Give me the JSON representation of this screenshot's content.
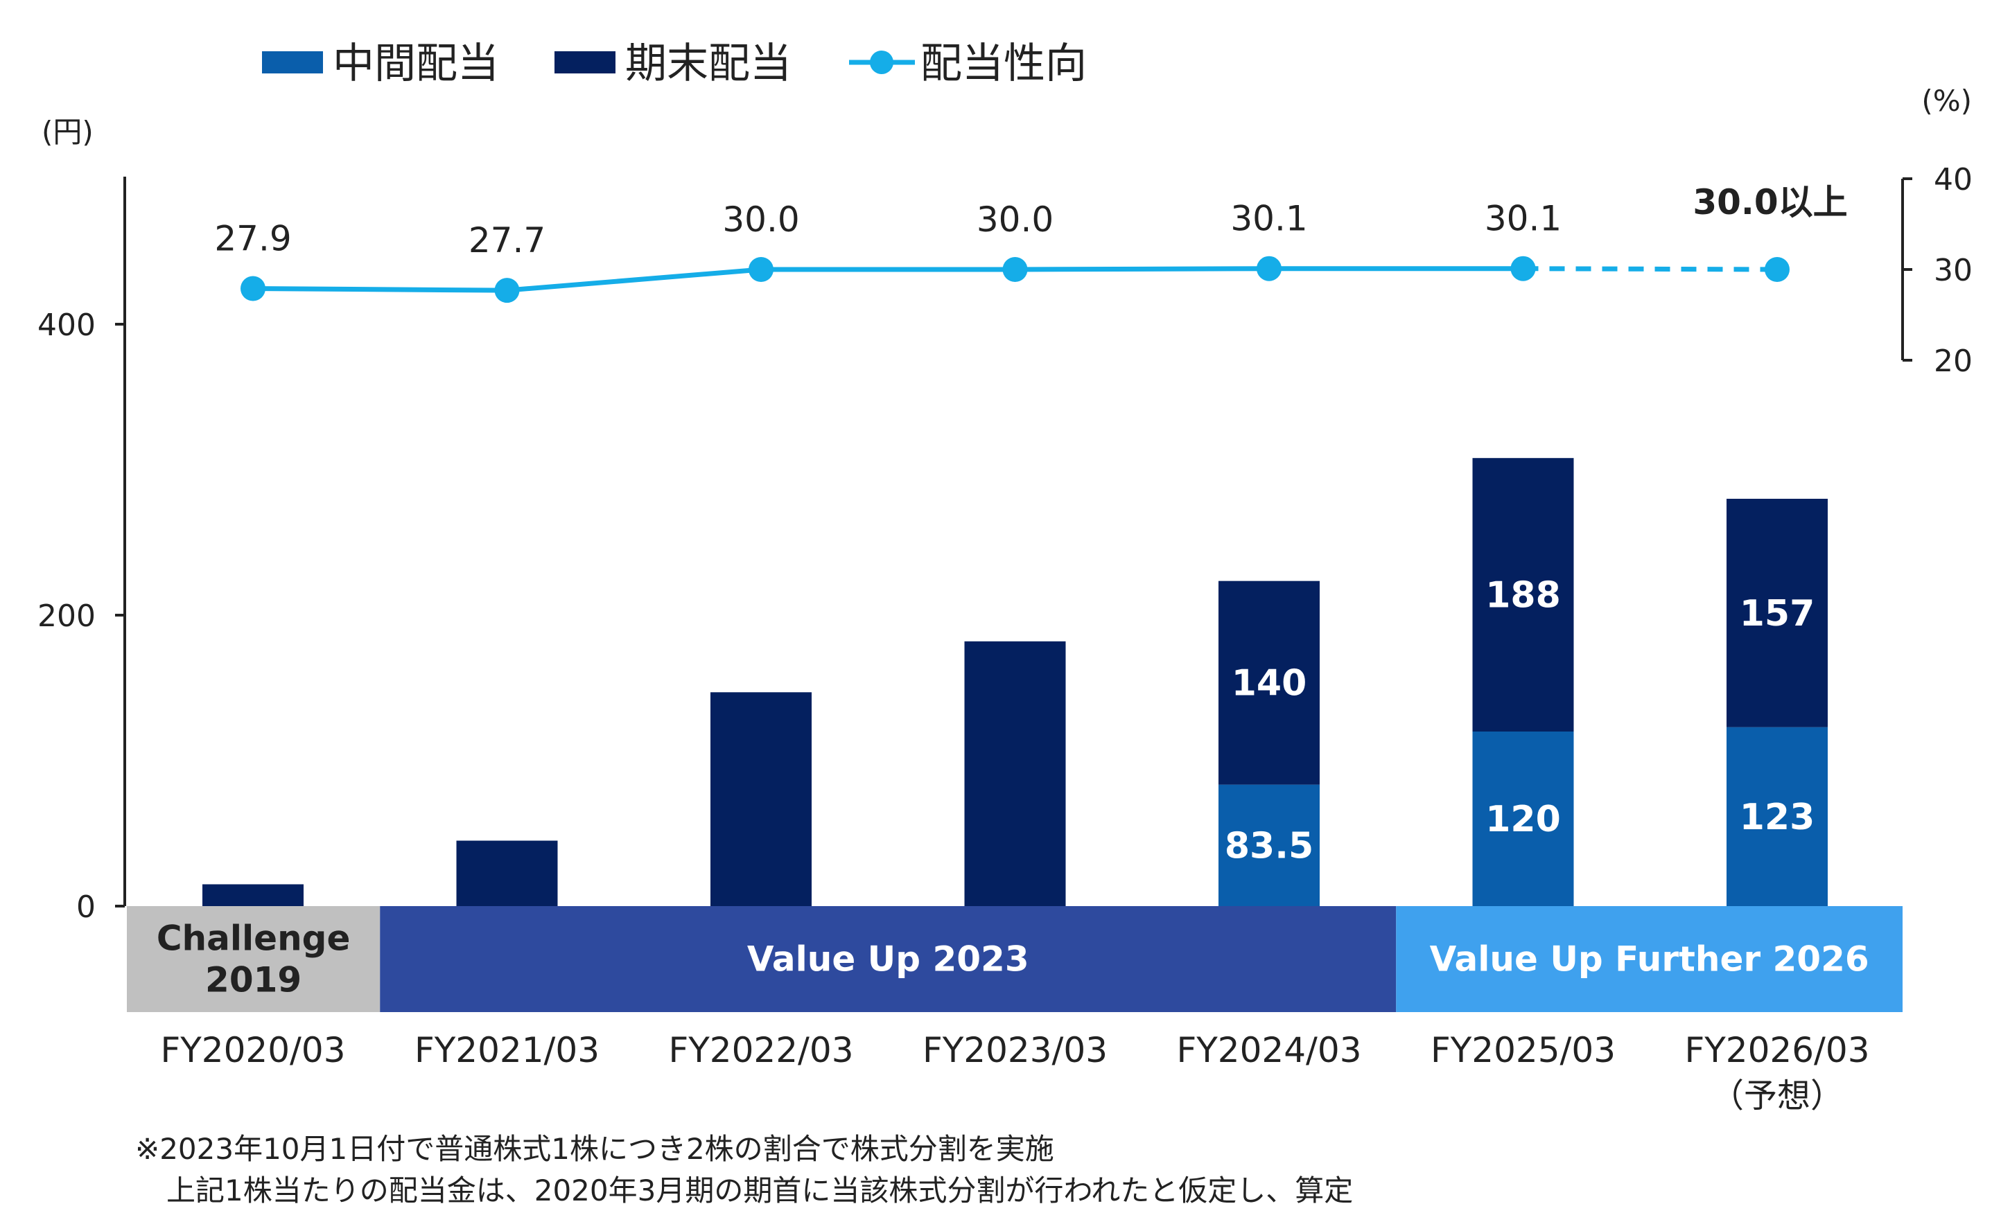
{
  "chart_data": {
    "type": "bar+line",
    "categories": [
      "FY2020/03",
      "FY2021/03",
      "FY2022/03",
      "FY2023/03",
      "FY2024/03",
      "FY2025/03",
      "FY2026/03"
    ],
    "category_note": "（予想）",
    "series": [
      {
        "name": "中間配当",
        "type": "bar",
        "color": "#0a5eab",
        "values": [
          0,
          0,
          0,
          0,
          83.5,
          120,
          123
        ],
        "labels": [
          "",
          "",
          "",
          "",
          "83.5",
          "120",
          "123"
        ]
      },
      {
        "name": "期末配当",
        "type": "bar",
        "color": "#04205f",
        "values": [
          15,
          45,
          147,
          182,
          140,
          188,
          157
        ],
        "labels": [
          "",
          "",
          "",
          "",
          "140",
          "188",
          "157"
        ]
      },
      {
        "name": "配当性向",
        "type": "line",
        "color": "#15ade8",
        "axis": "right",
        "values": [
          27.9,
          27.7,
          30.0,
          30.0,
          30.1,
          30.1,
          30.0
        ],
        "labels": [
          "27.9",
          "27.7",
          "30.0",
          "30.0",
          "30.1",
          "30.1",
          "30.0以上"
        ],
        "dashed_last_segment": true
      }
    ],
    "left_axis": {
      "unit": "(円)",
      "ticks": [
        0,
        200,
        400
      ],
      "range": [
        0,
        500
      ]
    },
    "right_axis": {
      "unit": "(%)",
      "ticks": [
        20,
        30,
        40
      ],
      "range": [
        20,
        40
      ]
    },
    "period_bands": [
      {
        "label_lines": [
          "Challenge",
          "2019"
        ],
        "from": 0,
        "to": 0,
        "color": "#c0c0c0",
        "text_color": "#222222"
      },
      {
        "label_lines": [
          "Value Up 2023"
        ],
        "from": 1,
        "to": 4,
        "color": "#2e4a9e",
        "text_color": "#ffffff"
      },
      {
        "label_lines": [
          "Value Up Further 2026"
        ],
        "from": 5,
        "to": 6,
        "color": "#3fa1ee",
        "text_color": "#ffffff"
      }
    ],
    "footnotes": [
      "※2023年10月1日付で普通株式1株につき2株の割合で株式分割を実施",
      "上記1株当たりの配当金は、2020年3月期の期首に当該株式分割が行われたと仮定し、算定"
    ]
  }
}
